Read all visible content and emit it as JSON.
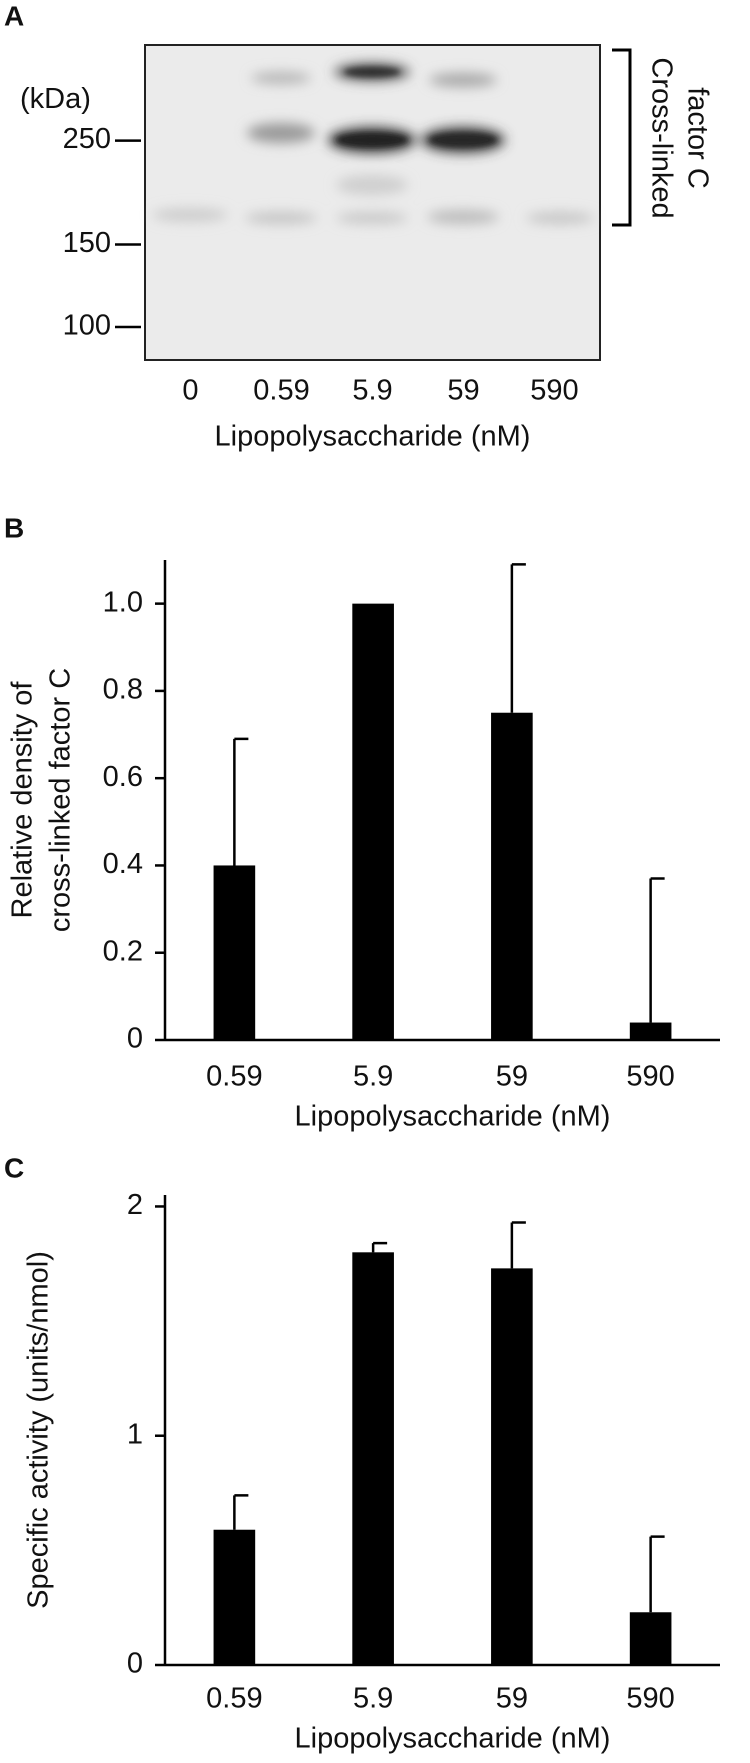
{
  "chart_data": [
    {
      "type": "blot",
      "panel": "A",
      "y_unit": "(kDa)",
      "log": true,
      "ylim": [
        85,
        400
      ],
      "yticks": [
        250,
        150,
        100
      ],
      "categories": [
        "0",
        "0.59",
        "5.9",
        "59",
        "590"
      ],
      "x_label": "Lipopolysaccharide (nM)",
      "annotation": [
        "Cross-linked",
        "factor C"
      ]
    },
    {
      "type": "bar",
      "panel": "B",
      "y_label": [
        "Relative density of",
        "cross-linked factor C"
      ],
      "x_label": "Lipopolysaccharide (nM)",
      "categories": [
        "0.59",
        "5.9",
        "59",
        "590"
      ],
      "values": [
        0.4,
        1.0,
        0.75,
        0.04
      ],
      "errors": [
        0.29,
        null,
        0.34,
        0.33
      ],
      "color": "#000000",
      "ylim": [
        0,
        1.1
      ],
      "yticks": [
        0,
        0.2,
        0.4,
        0.6,
        0.8,
        {
          "value": 1,
          "label": "1.0"
        }
      ]
    },
    {
      "type": "bar",
      "panel": "C",
      "y_label": [
        "Specific activity (units/nmol)"
      ],
      "x_label": "Lipopolysaccharide (nM)",
      "categories": [
        "0.59",
        "5.9",
        "59",
        "590"
      ],
      "values": [
        0.59,
        1.8,
        1.73,
        0.23
      ],
      "errors": [
        0.15,
        0.04,
        0.2,
        0.33
      ],
      "color": "#000000",
      "ylim": [
        0,
        2.05
      ],
      "yticks": [
        0,
        1,
        2
      ]
    }
  ]
}
